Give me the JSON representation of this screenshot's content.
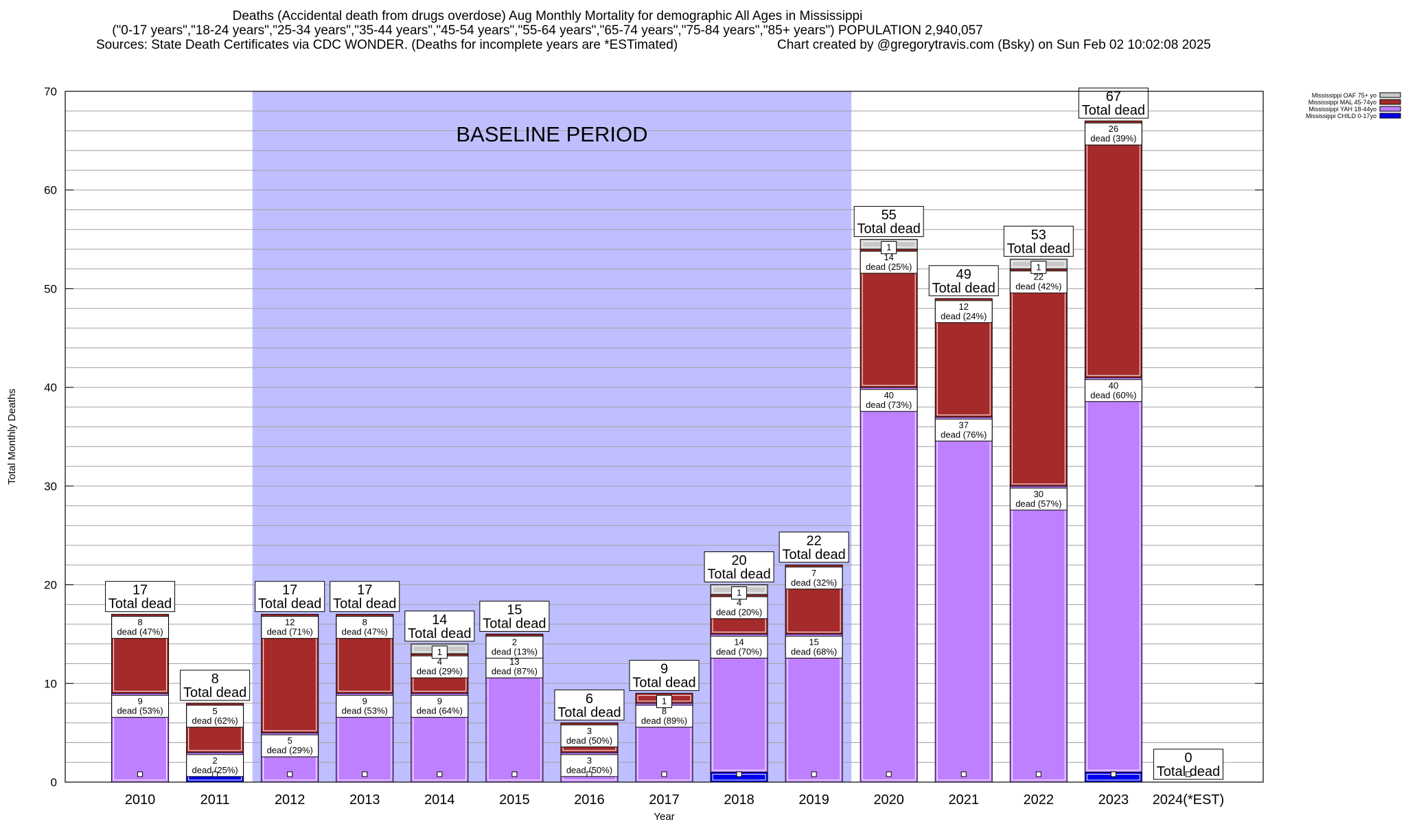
{
  "header": {
    "title": "Deaths (Accidental death from drugs overdose) Aug Monthly Mortality for demographic All Ages in Mississippi",
    "subtitle": "(\"0-17 years\",\"18-24 years\",\"25-34 years\",\"35-44 years\",\"45-54 years\",\"55-64 years\",\"65-74 years\",\"75-84 years\",\"85+ years\") POPULATION 2,940,057",
    "sources": "Sources: State Death Certificates via CDC WONDER. (Deaths for incomplete years are *ESTimated)",
    "credit": "Chart created by @gregorytravis.com (Bsky) on Sun Feb 02 10:02:08 2025"
  },
  "chart_data": {
    "type": "bar",
    "stacked": true,
    "categories": [
      "2010",
      "2011",
      "2012",
      "2013",
      "2014",
      "2015",
      "2016",
      "2017",
      "2018",
      "2019",
      "2020",
      "2021",
      "2022",
      "2023",
      "2024(*EST)"
    ],
    "series": [
      {
        "name": "Mississippi CHILD 0-17yo",
        "color": "#0000ee",
        "values": [
          0,
          1,
          0,
          0,
          0,
          0,
          0,
          0,
          1,
          0,
          0,
          0,
          0,
          1,
          0
        ]
      },
      {
        "name": "Mississippi YAH 18-44yo",
        "color": "#bf80ff",
        "values": [
          9,
          2,
          5,
          9,
          9,
          13,
          3,
          8,
          14,
          15,
          40,
          37,
          30,
          40,
          0
        ]
      },
      {
        "name": "Mississippi MAL 45-74yo",
        "color": "#a52a2a",
        "values": [
          8,
          5,
          12,
          8,
          4,
          2,
          3,
          1,
          4,
          7,
          14,
          12,
          22,
          26,
          0
        ]
      },
      {
        "name": "Mississippi OAF 75+ yo",
        "color": "#c8c8c8",
        "values": [
          0,
          0,
          0,
          0,
          1,
          0,
          0,
          0,
          1,
          0,
          1,
          0,
          1,
          0,
          0
        ]
      }
    ],
    "segment_labels": [
      {
        "yah": "9\ndead (53%)",
        "mal": "8\ndead (47%)"
      },
      {
        "yah": "2\ndead (25%)",
        "mal": "5\ndead (62%)"
      },
      {
        "yah": "5\ndead (29%)",
        "mal": "12\ndead (71%)"
      },
      {
        "yah": "9\ndead (53%)",
        "mal": "8\ndead (47%)"
      },
      {
        "yah": "9\ndead (64%)",
        "mal": "4\ndead (29%)",
        "oaf": "1"
      },
      {
        "yah": "13\ndead (87%)",
        "mal": "2\ndead (13%)"
      },
      {
        "yah": "3\ndead (50%)",
        "mal": "3\ndead (50%)"
      },
      {
        "yah": "8\ndead (89%)",
        "mal": "1"
      },
      {
        "yah": "14\ndead (70%)",
        "mal": "4\ndead (20%)",
        "oaf": "1"
      },
      {
        "yah": "15\ndead (68%)",
        "mal": "7\ndead (32%)"
      },
      {
        "yah": "40\ndead (73%)",
        "mal": "14\ndead (25%)",
        "oaf": "1"
      },
      {
        "yah": "37\ndead (76%)",
        "mal": "12\ndead (24%)"
      },
      {
        "yah": "30\ndead (57%)",
        "mal": "22\ndead (42%)",
        "oaf": "1"
      },
      {
        "yah": "40\ndead (60%)",
        "mal": "26\ndead (39%)"
      },
      {}
    ],
    "totals": [
      17,
      8,
      17,
      17,
      14,
      15,
      6,
      9,
      20,
      22,
      55,
      49,
      53,
      67,
      0
    ],
    "total_suffix": "Total dead",
    "baseline": {
      "label": "BASELINE PERIOD",
      "from": "2012",
      "to": "2019"
    },
    "xlabel": "Year",
    "ylabel": "Total Monthly Deaths",
    "ylim": [
      0,
      70
    ],
    "yticks": [
      0,
      10,
      20,
      30,
      40,
      50,
      60,
      70
    ],
    "grid": true,
    "legend_position": "top-right",
    "legend_order": [
      "Mississippi OAF 75+ yo",
      "Mississippi MAL 45-74yo",
      "Mississippi YAH 18-44yo",
      "Mississippi CHILD 0-17yo"
    ]
  }
}
